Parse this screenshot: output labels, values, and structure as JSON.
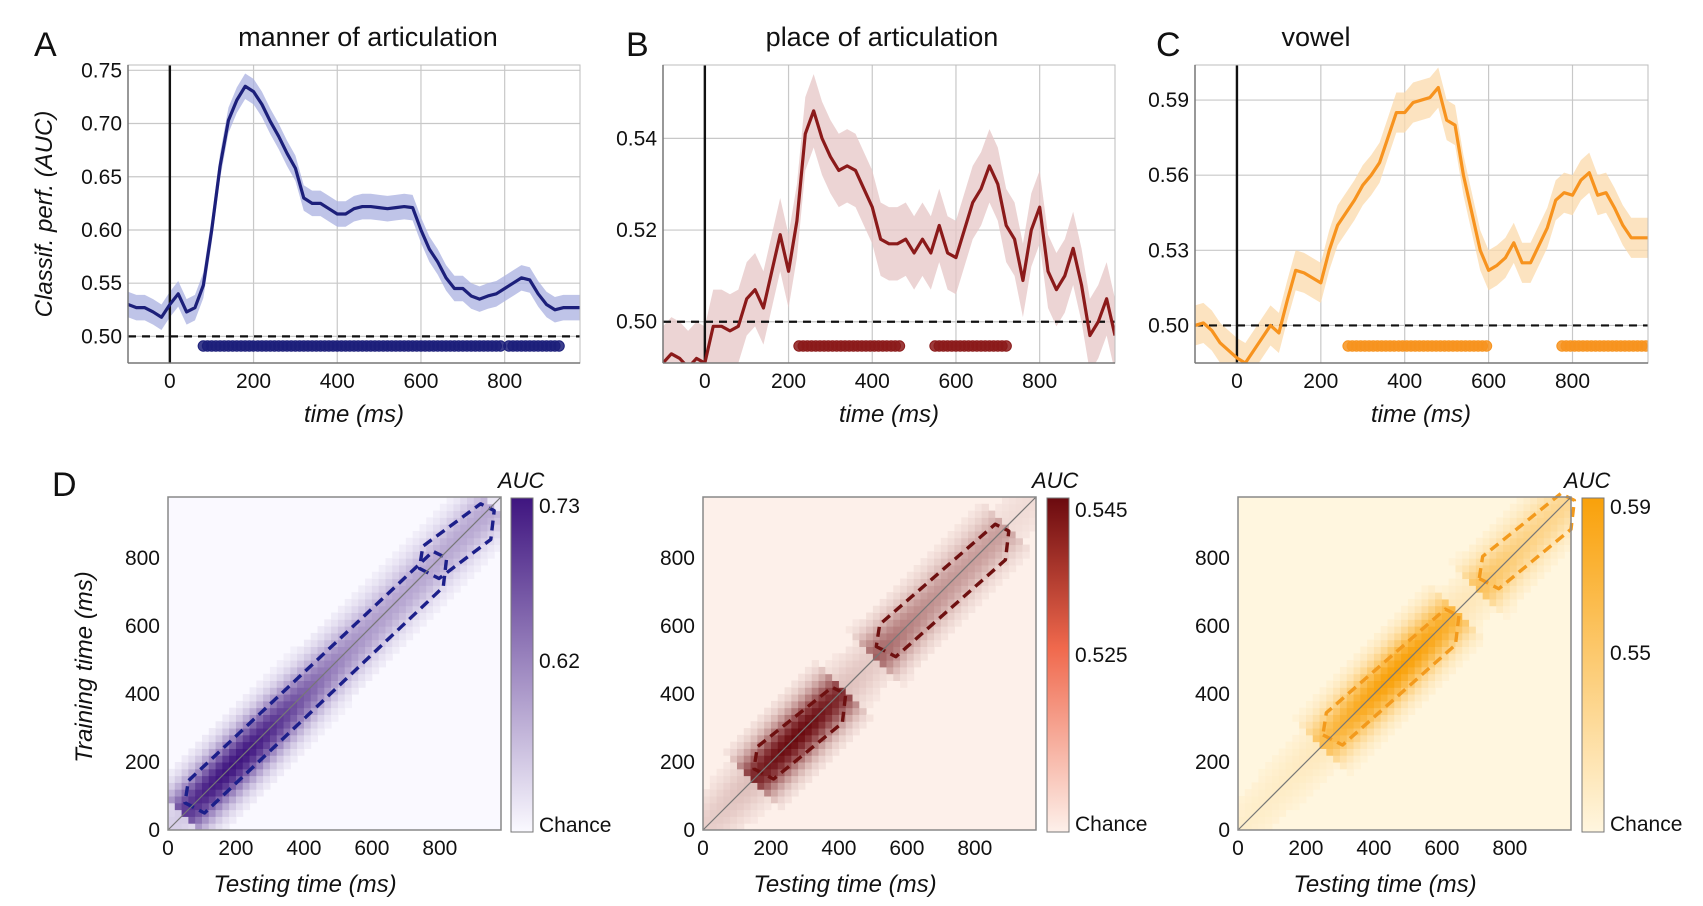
{
  "figure": {
    "panel_letters": [
      "A",
      "B",
      "C",
      "D"
    ]
  },
  "chart_data": [
    {
      "panel": "A",
      "type": "line",
      "title": "manner of articulation",
      "xlabel": "time (ms)",
      "ylabel": "Classif. perf. (AUC)",
      "xlim": [
        -100,
        980
      ],
      "ylim": [
        0.475,
        0.755
      ],
      "xticks": [
        0,
        200,
        400,
        600,
        800
      ],
      "yticks": [
        0.5,
        0.55,
        0.6,
        0.65,
        0.7,
        0.75
      ],
      "ytick_labels": [
        "0.50",
        "0.55",
        "0.60",
        "0.65",
        "0.70",
        "0.75"
      ],
      "chance": 0.5,
      "color": "#1c1f7a",
      "band_color": "#aab0e0",
      "series": [
        {
          "x": [
            -100,
            -80,
            -60,
            -40,
            -20,
            0,
            20,
            40,
            60,
            80,
            100,
            120,
            140,
            160,
            180,
            200,
            220,
            240,
            260,
            280,
            300,
            320,
            340,
            360,
            380,
            400,
            420,
            440,
            460,
            480,
            500,
            520,
            540,
            560,
            580,
            600,
            620,
            640,
            660,
            680,
            700,
            720,
            740,
            760,
            780,
            800,
            820,
            840,
            860,
            880,
            900,
            920,
            940,
            960,
            980
          ],
          "y": [
            0.53,
            0.527,
            0.527,
            0.523,
            0.518,
            0.53,
            0.54,
            0.523,
            0.527,
            0.548,
            0.6,
            0.66,
            0.703,
            0.722,
            0.735,
            0.73,
            0.718,
            0.702,
            0.688,
            0.672,
            0.658,
            0.63,
            0.625,
            0.625,
            0.62,
            0.615,
            0.615,
            0.62,
            0.622,
            0.622,
            0.621,
            0.62,
            0.621,
            0.622,
            0.621,
            0.6,
            0.582,
            0.57,
            0.555,
            0.545,
            0.545,
            0.538,
            0.535,
            0.538,
            0.54,
            0.545,
            0.55,
            0.555,
            0.553,
            0.54,
            0.53,
            0.525,
            0.527,
            0.527,
            0.527
          ],
          "band": 0.012
        }
      ],
      "significant": [
        [
          80,
          790
        ],
        [
          810,
          930
        ]
      ]
    },
    {
      "panel": "B",
      "type": "line",
      "title": "place of articulation",
      "xlabel": "time (ms)",
      "ylabel": "",
      "xlim": [
        -100,
        980
      ],
      "ylim": [
        0.491,
        0.556
      ],
      "xticks": [
        0,
        200,
        400,
        600,
        800
      ],
      "yticks": [
        0.5,
        0.52,
        0.54
      ],
      "ytick_labels": [
        "0.50",
        "0.52",
        "0.54"
      ],
      "chance": 0.5,
      "color": "#8b1a1a",
      "band_color": "#e6c6c6",
      "series": [
        {
          "x": [
            -100,
            -80,
            -60,
            -40,
            -20,
            0,
            20,
            40,
            60,
            80,
            100,
            120,
            140,
            160,
            180,
            200,
            220,
            240,
            260,
            280,
            300,
            320,
            340,
            360,
            380,
            400,
            420,
            440,
            460,
            480,
            500,
            520,
            540,
            560,
            580,
            600,
            620,
            640,
            660,
            680,
            700,
            720,
            740,
            760,
            780,
            800,
            820,
            840,
            860,
            880,
            900,
            920,
            940,
            960,
            980
          ],
          "y": [
            0.491,
            0.493,
            0.492,
            0.49,
            0.492,
            0.491,
            0.499,
            0.499,
            0.498,
            0.499,
            0.505,
            0.507,
            0.503,
            0.511,
            0.519,
            0.511,
            0.522,
            0.541,
            0.546,
            0.54,
            0.536,
            0.533,
            0.534,
            0.533,
            0.529,
            0.525,
            0.518,
            0.517,
            0.517,
            0.518,
            0.515,
            0.518,
            0.515,
            0.521,
            0.515,
            0.514,
            0.52,
            0.526,
            0.529,
            0.534,
            0.53,
            0.521,
            0.518,
            0.509,
            0.52,
            0.525,
            0.511,
            0.507,
            0.51,
            0.516,
            0.508,
            0.497,
            0.5,
            0.505,
            0.497
          ],
          "band": 0.008
        }
      ],
      "significant": [
        [
          225,
          470
        ],
        [
          550,
          720
        ]
      ]
    },
    {
      "panel": "C",
      "type": "line",
      "title": "vowel",
      "xlabel": "time (ms)",
      "ylabel": "",
      "xlim": [
        -100,
        980
      ],
      "ylim": [
        0.485,
        0.604
      ],
      "xticks": [
        0,
        200,
        400,
        600,
        800
      ],
      "yticks": [
        0.5,
        0.53,
        0.56,
        0.59
      ],
      "ytick_labels": [
        "0.50",
        "0.53",
        "0.56",
        "0.59"
      ],
      "chance": 0.5,
      "color": "#f7931e",
      "band_color": "#fbd9ab",
      "series": [
        {
          "x": [
            -100,
            -80,
            -60,
            -40,
            -20,
            0,
            20,
            40,
            60,
            80,
            100,
            120,
            140,
            160,
            180,
            200,
            220,
            240,
            260,
            280,
            300,
            320,
            340,
            360,
            380,
            400,
            420,
            440,
            460,
            480,
            500,
            520,
            540,
            560,
            580,
            600,
            620,
            640,
            660,
            680,
            700,
            720,
            740,
            760,
            780,
            800,
            820,
            840,
            860,
            880,
            900,
            920,
            940,
            960,
            980
          ],
          "y": [
            0.5,
            0.501,
            0.498,
            0.493,
            0.49,
            0.487,
            0.485,
            0.49,
            0.495,
            0.5,
            0.497,
            0.51,
            0.522,
            0.521,
            0.519,
            0.517,
            0.53,
            0.54,
            0.545,
            0.55,
            0.556,
            0.56,
            0.565,
            0.575,
            0.585,
            0.585,
            0.589,
            0.59,
            0.591,
            0.595,
            0.582,
            0.58,
            0.56,
            0.545,
            0.53,
            0.522,
            0.524,
            0.527,
            0.533,
            0.525,
            0.525,
            0.532,
            0.539,
            0.55,
            0.553,
            0.552,
            0.558,
            0.561,
            0.552,
            0.553,
            0.547,
            0.54,
            0.535,
            0.535,
            0.535
          ],
          "band": 0.008
        }
      ],
      "significant": [
        [
          265,
          595
        ],
        [
          775,
          980
        ]
      ]
    },
    {
      "panel": "D",
      "type": "heatmap",
      "xlabel": "Testing time (ms)",
      "ylabel": "Training time (ms)",
      "xlim": [
        0,
        980
      ],
      "ylim": [
        0,
        980
      ],
      "xticks": [
        0,
        200,
        400,
        600,
        800
      ],
      "yticks": [
        0,
        200,
        400,
        600,
        800
      ],
      "maps": [
        {
          "colorbar_title": "AUC",
          "colorbar_top": "0.73",
          "colorbar_mid": "0.62",
          "colorbar_bottom": "Chance",
          "color_low": "#faf9ff",
          "color_high": "#3f1580",
          "contour_color": "#1c1f8a",
          "peak_t": 190,
          "significant_regions": [
            [
              70,
              790
            ],
            [
              760,
              930
            ]
          ]
        },
        {
          "colorbar_title": "AUC",
          "colorbar_top": "0.545",
          "colorbar_mid": "0.525",
          "colorbar_bottom": "Chance",
          "color_low": "#fdf0ea",
          "color_high": "#6b0a0f",
          "contour_color": "#6e1010",
          "peak_t": 270,
          "significant_regions": [
            [
              170,
              390
            ],
            [
              530,
              870
            ]
          ]
        },
        {
          "colorbar_title": "AUC",
          "colorbar_top": "0.59",
          "colorbar_mid": "0.55",
          "colorbar_bottom": "Chance",
          "color_low": "#fff6df",
          "color_high": "#f9a10a",
          "contour_color": "#f39a1c",
          "peak_t": 470,
          "significant_regions": [
            [
              270,
              620
            ],
            [
              730,
              960
            ]
          ]
        }
      ]
    }
  ]
}
